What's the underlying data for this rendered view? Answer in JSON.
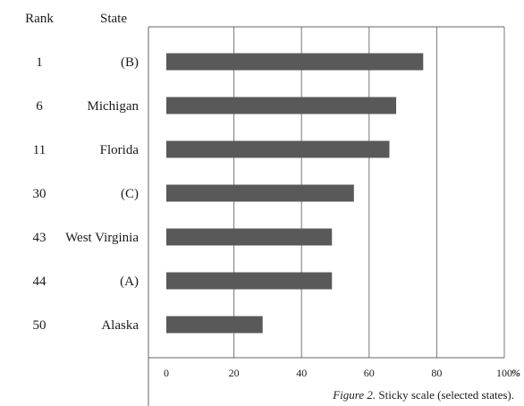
{
  "chart_data": {
    "type": "bar",
    "orientation": "horizontal",
    "headers": {
      "rank": "Rank",
      "state": "State"
    },
    "ranks": [
      "1",
      "6",
      "11",
      "30",
      "43",
      "44",
      "50"
    ],
    "categories": [
      "(B)",
      "Michigan",
      "Florida",
      "(C)",
      "West Virginia",
      "(A)",
      "Alaska"
    ],
    "values": [
      76,
      68,
      66,
      55.5,
      49,
      49,
      28.5
    ],
    "xlim": [
      0,
      100
    ],
    "x_ticks": [
      "0",
      "20",
      "40",
      "60",
      "80",
      "100"
    ],
    "x_unit": "%",
    "grid": true,
    "bar_color": "#595959",
    "caption": {
      "figure": "Figure 2.",
      "text": " Sticky scale (selected states)."
    }
  }
}
